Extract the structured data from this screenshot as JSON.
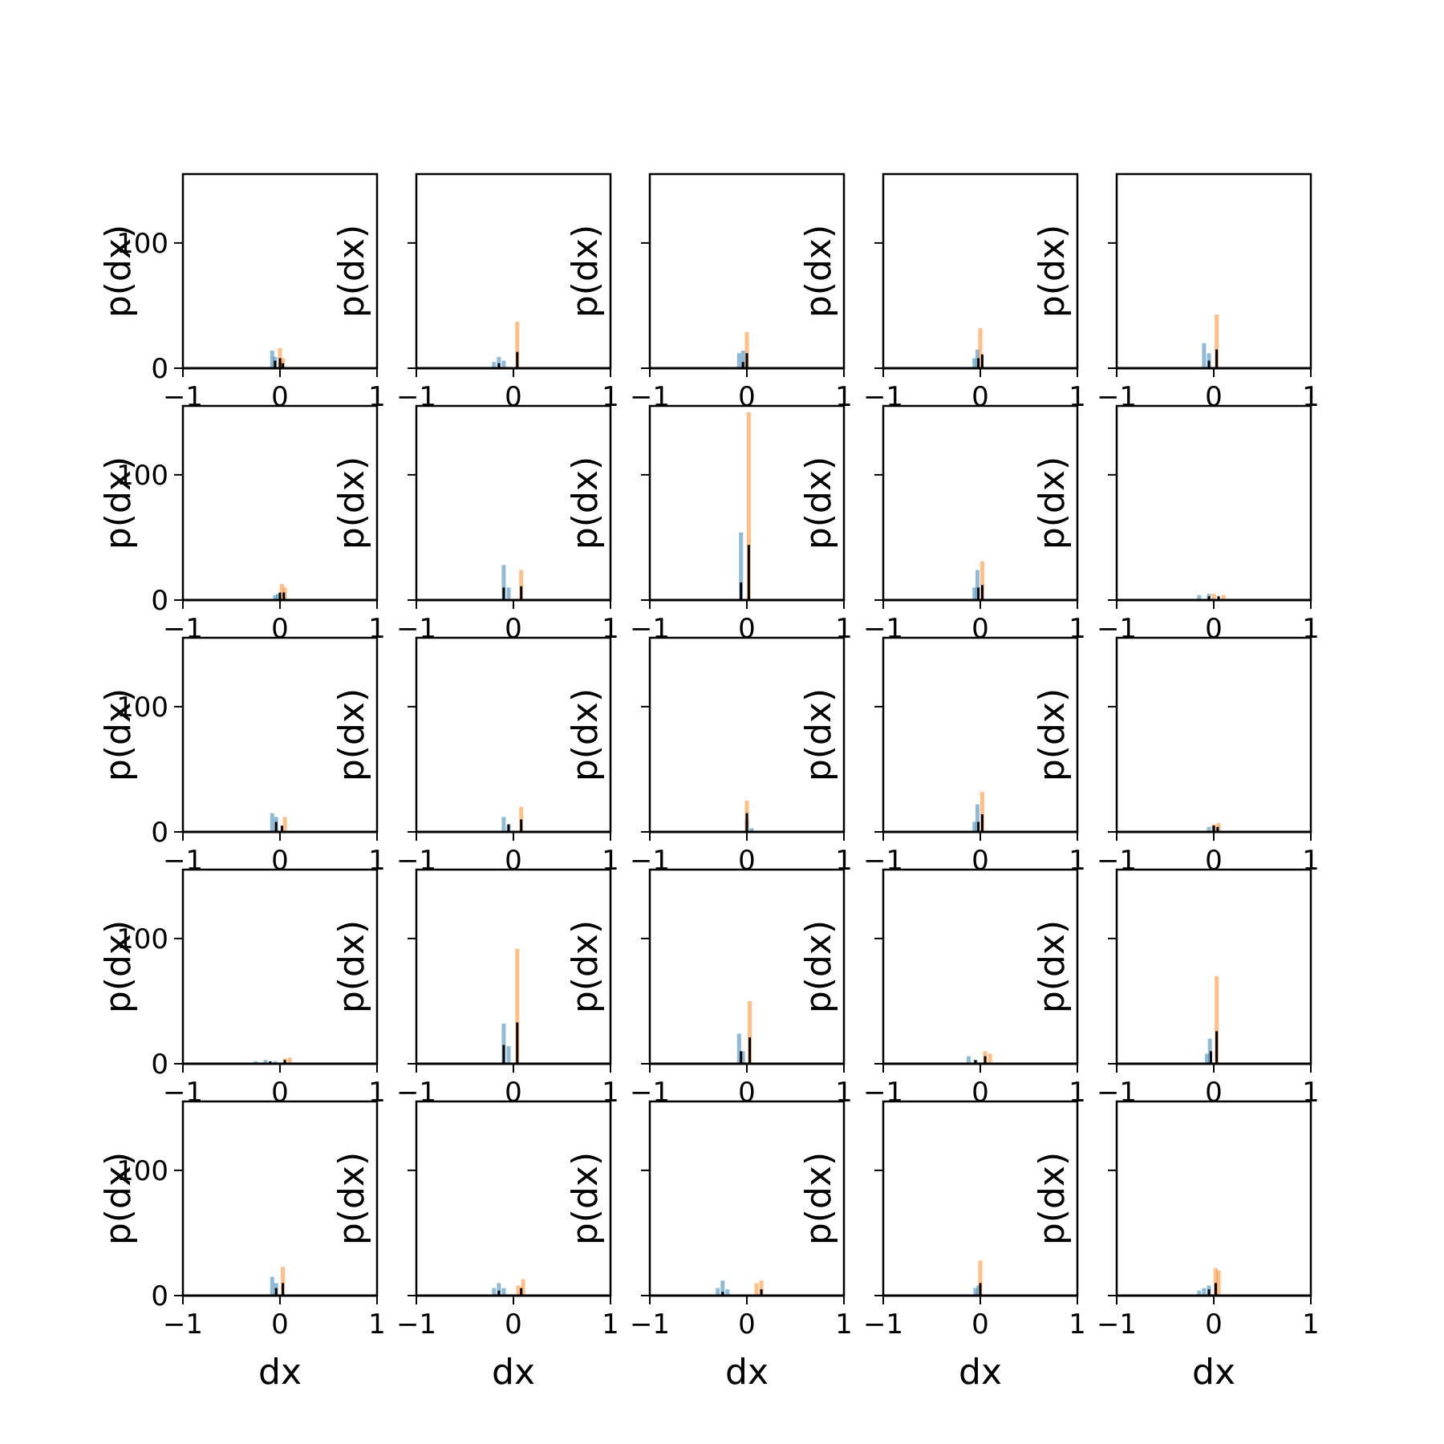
{
  "chart_data": {
    "type": "histogram-grid",
    "rows": 5,
    "cols": 5,
    "xlabel": "dx",
    "ylabel": "p(dx)",
    "xlim": [
      -1,
      1
    ],
    "ylim": [
      0,
      155
    ],
    "xticks": [
      -1,
      0,
      1
    ],
    "xtick_labels": [
      "−1",
      "0",
      "1"
    ],
    "yticks": [
      0,
      100
    ],
    "ytick_labels": [
      "0",
      "100"
    ],
    "colors": {
      "series_blue": "#1f77b4",
      "series_orange": "#ff7f0e",
      "series_combined": "#000000"
    },
    "panels": [
      {
        "blue": [
          [
            -0.08,
            14
          ],
          [
            -0.05,
            9
          ]
        ],
        "orange": [
          [
            0.0,
            16
          ],
          [
            0.03,
            8
          ]
        ],
        "combined": [
          [
            -0.05,
            6
          ],
          [
            0.0,
            8
          ],
          [
            0.03,
            4
          ]
        ]
      },
      {
        "blue": [
          [
            -0.2,
            5
          ],
          [
            -0.15,
            9
          ],
          [
            -0.1,
            6
          ]
        ],
        "orange": [
          [
            0.04,
            37
          ]
        ],
        "combined": [
          [
            -0.15,
            4
          ],
          [
            0.04,
            13
          ]
        ]
      },
      {
        "blue": [
          [
            -0.08,
            12
          ],
          [
            -0.04,
            14
          ]
        ],
        "orange": [
          [
            0.0,
            29
          ]
        ],
        "combined": [
          [
            -0.04,
            5
          ],
          [
            0.0,
            12
          ]
        ]
      },
      {
        "blue": [
          [
            -0.03,
            15
          ],
          [
            -0.06,
            8
          ]
        ],
        "orange": [
          [
            0.0,
            32
          ]
        ],
        "combined": [
          [
            -0.02,
            8
          ],
          [
            0.02,
            11
          ]
        ]
      },
      {
        "blue": [
          [
            -0.1,
            20
          ],
          [
            -0.05,
            12
          ]
        ],
        "orange": [
          [
            0.03,
            43
          ]
        ],
        "combined": [
          [
            -0.05,
            6
          ],
          [
            0.03,
            15
          ]
        ]
      },
      {
        "blue": [
          [
            -0.05,
            4
          ],
          [
            -0.02,
            5
          ]
        ],
        "orange": [
          [
            0.02,
            13
          ],
          [
            0.05,
            10
          ]
        ],
        "combined": [
          [
            0.0,
            6
          ],
          [
            0.04,
            6
          ]
        ]
      },
      {
        "blue": [
          [
            -0.1,
            28
          ],
          [
            -0.05,
            10
          ]
        ],
        "orange": [
          [
            0.08,
            24
          ]
        ],
        "combined": [
          [
            -0.1,
            10
          ],
          [
            0.08,
            11
          ]
        ]
      },
      {
        "blue": [
          [
            -0.06,
            54
          ]
        ],
        "orange": [
          [
            0.02,
            150
          ]
        ],
        "combined": [
          [
            -0.06,
            14
          ],
          [
            0.02,
            44
          ]
        ]
      },
      {
        "blue": [
          [
            -0.03,
            24
          ],
          [
            -0.06,
            10
          ]
        ],
        "orange": [
          [
            0.02,
            31
          ]
        ],
        "combined": [
          [
            -0.02,
            10
          ],
          [
            0.02,
            12
          ]
        ]
      },
      {
        "blue": [
          [
            -0.15,
            4
          ],
          [
            -0.05,
            5
          ]
        ],
        "orange": [
          [
            0.0,
            5
          ],
          [
            0.1,
            4
          ]
        ],
        "combined": [
          [
            -0.05,
            3
          ],
          [
            0.05,
            3
          ]
        ]
      },
      {
        "blue": [
          [
            -0.08,
            15
          ],
          [
            -0.04,
            12
          ]
        ],
        "orange": [
          [
            0.05,
            12
          ]
        ],
        "combined": [
          [
            -0.04,
            8
          ],
          [
            0.02,
            5
          ]
        ]
      },
      {
        "blue": [
          [
            -0.1,
            12
          ],
          [
            -0.05,
            6
          ]
        ],
        "orange": [
          [
            0.08,
            20
          ]
        ],
        "combined": [
          [
            -0.05,
            6
          ],
          [
            0.08,
            10
          ]
        ]
      },
      {
        "blue": [
          [
            0.0,
            10
          ],
          [
            0.05,
            3
          ]
        ],
        "orange": [
          [
            0.0,
            25
          ]
        ],
        "combined": [
          [
            0.0,
            15
          ]
        ]
      },
      {
        "blue": [
          [
            -0.03,
            22
          ],
          [
            -0.06,
            8
          ]
        ],
        "orange": [
          [
            0.02,
            32
          ]
        ],
        "combined": [
          [
            -0.02,
            8
          ],
          [
            0.02,
            14
          ]
        ]
      },
      {
        "blue": [
          [
            -0.05,
            4
          ],
          [
            0.0,
            5
          ]
        ],
        "orange": [
          [
            0.0,
            6
          ],
          [
            0.05,
            7
          ]
        ],
        "combined": [
          [
            0.0,
            5
          ],
          [
            0.04,
            4
          ]
        ]
      },
      {
        "blue": [
          [
            -0.25,
            2
          ],
          [
            -0.15,
            3
          ],
          [
            -0.05,
            2
          ]
        ],
        "orange": [
          [
            0.05,
            4
          ],
          [
            0.1,
            5
          ]
        ],
        "combined": [
          [
            -0.1,
            2
          ],
          [
            0.05,
            3
          ]
        ]
      },
      {
        "blue": [
          [
            -0.1,
            32
          ],
          [
            -0.05,
            14
          ]
        ],
        "orange": [
          [
            0.04,
            92
          ]
        ],
        "combined": [
          [
            -0.1,
            15
          ],
          [
            0.04,
            33
          ]
        ]
      },
      {
        "blue": [
          [
            -0.08,
            24
          ],
          [
            -0.04,
            10
          ]
        ],
        "orange": [
          [
            0.03,
            50
          ]
        ],
        "combined": [
          [
            -0.06,
            10
          ],
          [
            0.03,
            21
          ]
        ]
      },
      {
        "blue": [
          [
            -0.12,
            6
          ],
          [
            -0.05,
            3
          ]
        ],
        "orange": [
          [
            0.05,
            10
          ],
          [
            0.1,
            8
          ]
        ],
        "combined": [
          [
            -0.05,
            3
          ],
          [
            0.05,
            6
          ]
        ]
      },
      {
        "blue": [
          [
            -0.04,
            20
          ],
          [
            -0.07,
            8
          ]
        ],
        "orange": [
          [
            0.03,
            70
          ]
        ],
        "combined": [
          [
            -0.03,
            10
          ],
          [
            0.03,
            26
          ]
        ]
      },
      {
        "blue": [
          [
            -0.08,
            15
          ],
          [
            -0.04,
            10
          ]
        ],
        "orange": [
          [
            0.03,
            23
          ]
        ],
        "combined": [
          [
            -0.04,
            6
          ],
          [
            0.03,
            10
          ]
        ]
      },
      {
        "blue": [
          [
            -0.2,
            6
          ],
          [
            -0.15,
            10
          ],
          [
            -0.1,
            6
          ]
        ],
        "orange": [
          [
            0.05,
            8
          ],
          [
            0.1,
            13
          ]
        ],
        "combined": [
          [
            -0.15,
            4
          ],
          [
            0.08,
            6
          ]
        ]
      },
      {
        "blue": [
          [
            -0.3,
            6
          ],
          [
            -0.25,
            12
          ],
          [
            -0.2,
            5
          ]
        ],
        "orange": [
          [
            0.1,
            10
          ],
          [
            0.15,
            12
          ]
        ],
        "combined": [
          [
            -0.25,
            3
          ],
          [
            0.15,
            5
          ]
        ]
      },
      {
        "blue": [
          [
            -0.05,
            6
          ],
          [
            -0.02,
            8
          ]
        ],
        "orange": [
          [
            0.0,
            28
          ]
        ],
        "combined": [
          [
            0.0,
            10
          ]
        ]
      },
      {
        "blue": [
          [
            -0.15,
            4
          ],
          [
            -0.1,
            6
          ],
          [
            -0.05,
            8
          ]
        ],
        "orange": [
          [
            0.02,
            22
          ],
          [
            0.05,
            20
          ]
        ],
        "combined": [
          [
            -0.05,
            5
          ],
          [
            0.02,
            10
          ]
        ]
      }
    ]
  }
}
